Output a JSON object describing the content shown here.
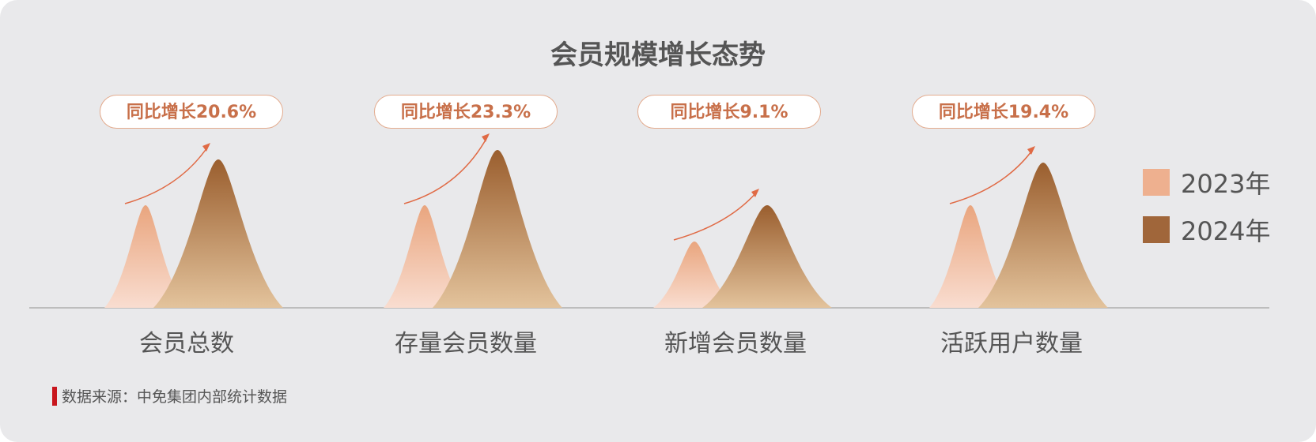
{
  "chart_data": {
    "type": "area",
    "title": "会员规模增长态势",
    "categories": [
      "会员总数",
      "存量会员数量",
      "新增会员数量",
      "活跃用户数量"
    ],
    "series": [
      {
        "name": "2023年",
        "color": "#eeb08f",
        "relative_peak": [
          65,
          65,
          42,
          65
        ]
      },
      {
        "name": "2024年",
        "color": "#a0663a",
        "relative_peak": [
          94,
          100,
          65,
          92
        ]
      }
    ],
    "annotations": [
      "同比增长20.6%",
      "同比增长23.3%",
      "同比增长9.1%",
      "同比增长19.4%"
    ],
    "legend": "right",
    "grid": false
  },
  "source": "数据来源：中免集团内部统计数据",
  "colors": {
    "arrow": "#e06a45",
    "badge_text": "#c8704a",
    "badge_border": "#e3ab8e",
    "axis": "#bdbdbd"
  }
}
